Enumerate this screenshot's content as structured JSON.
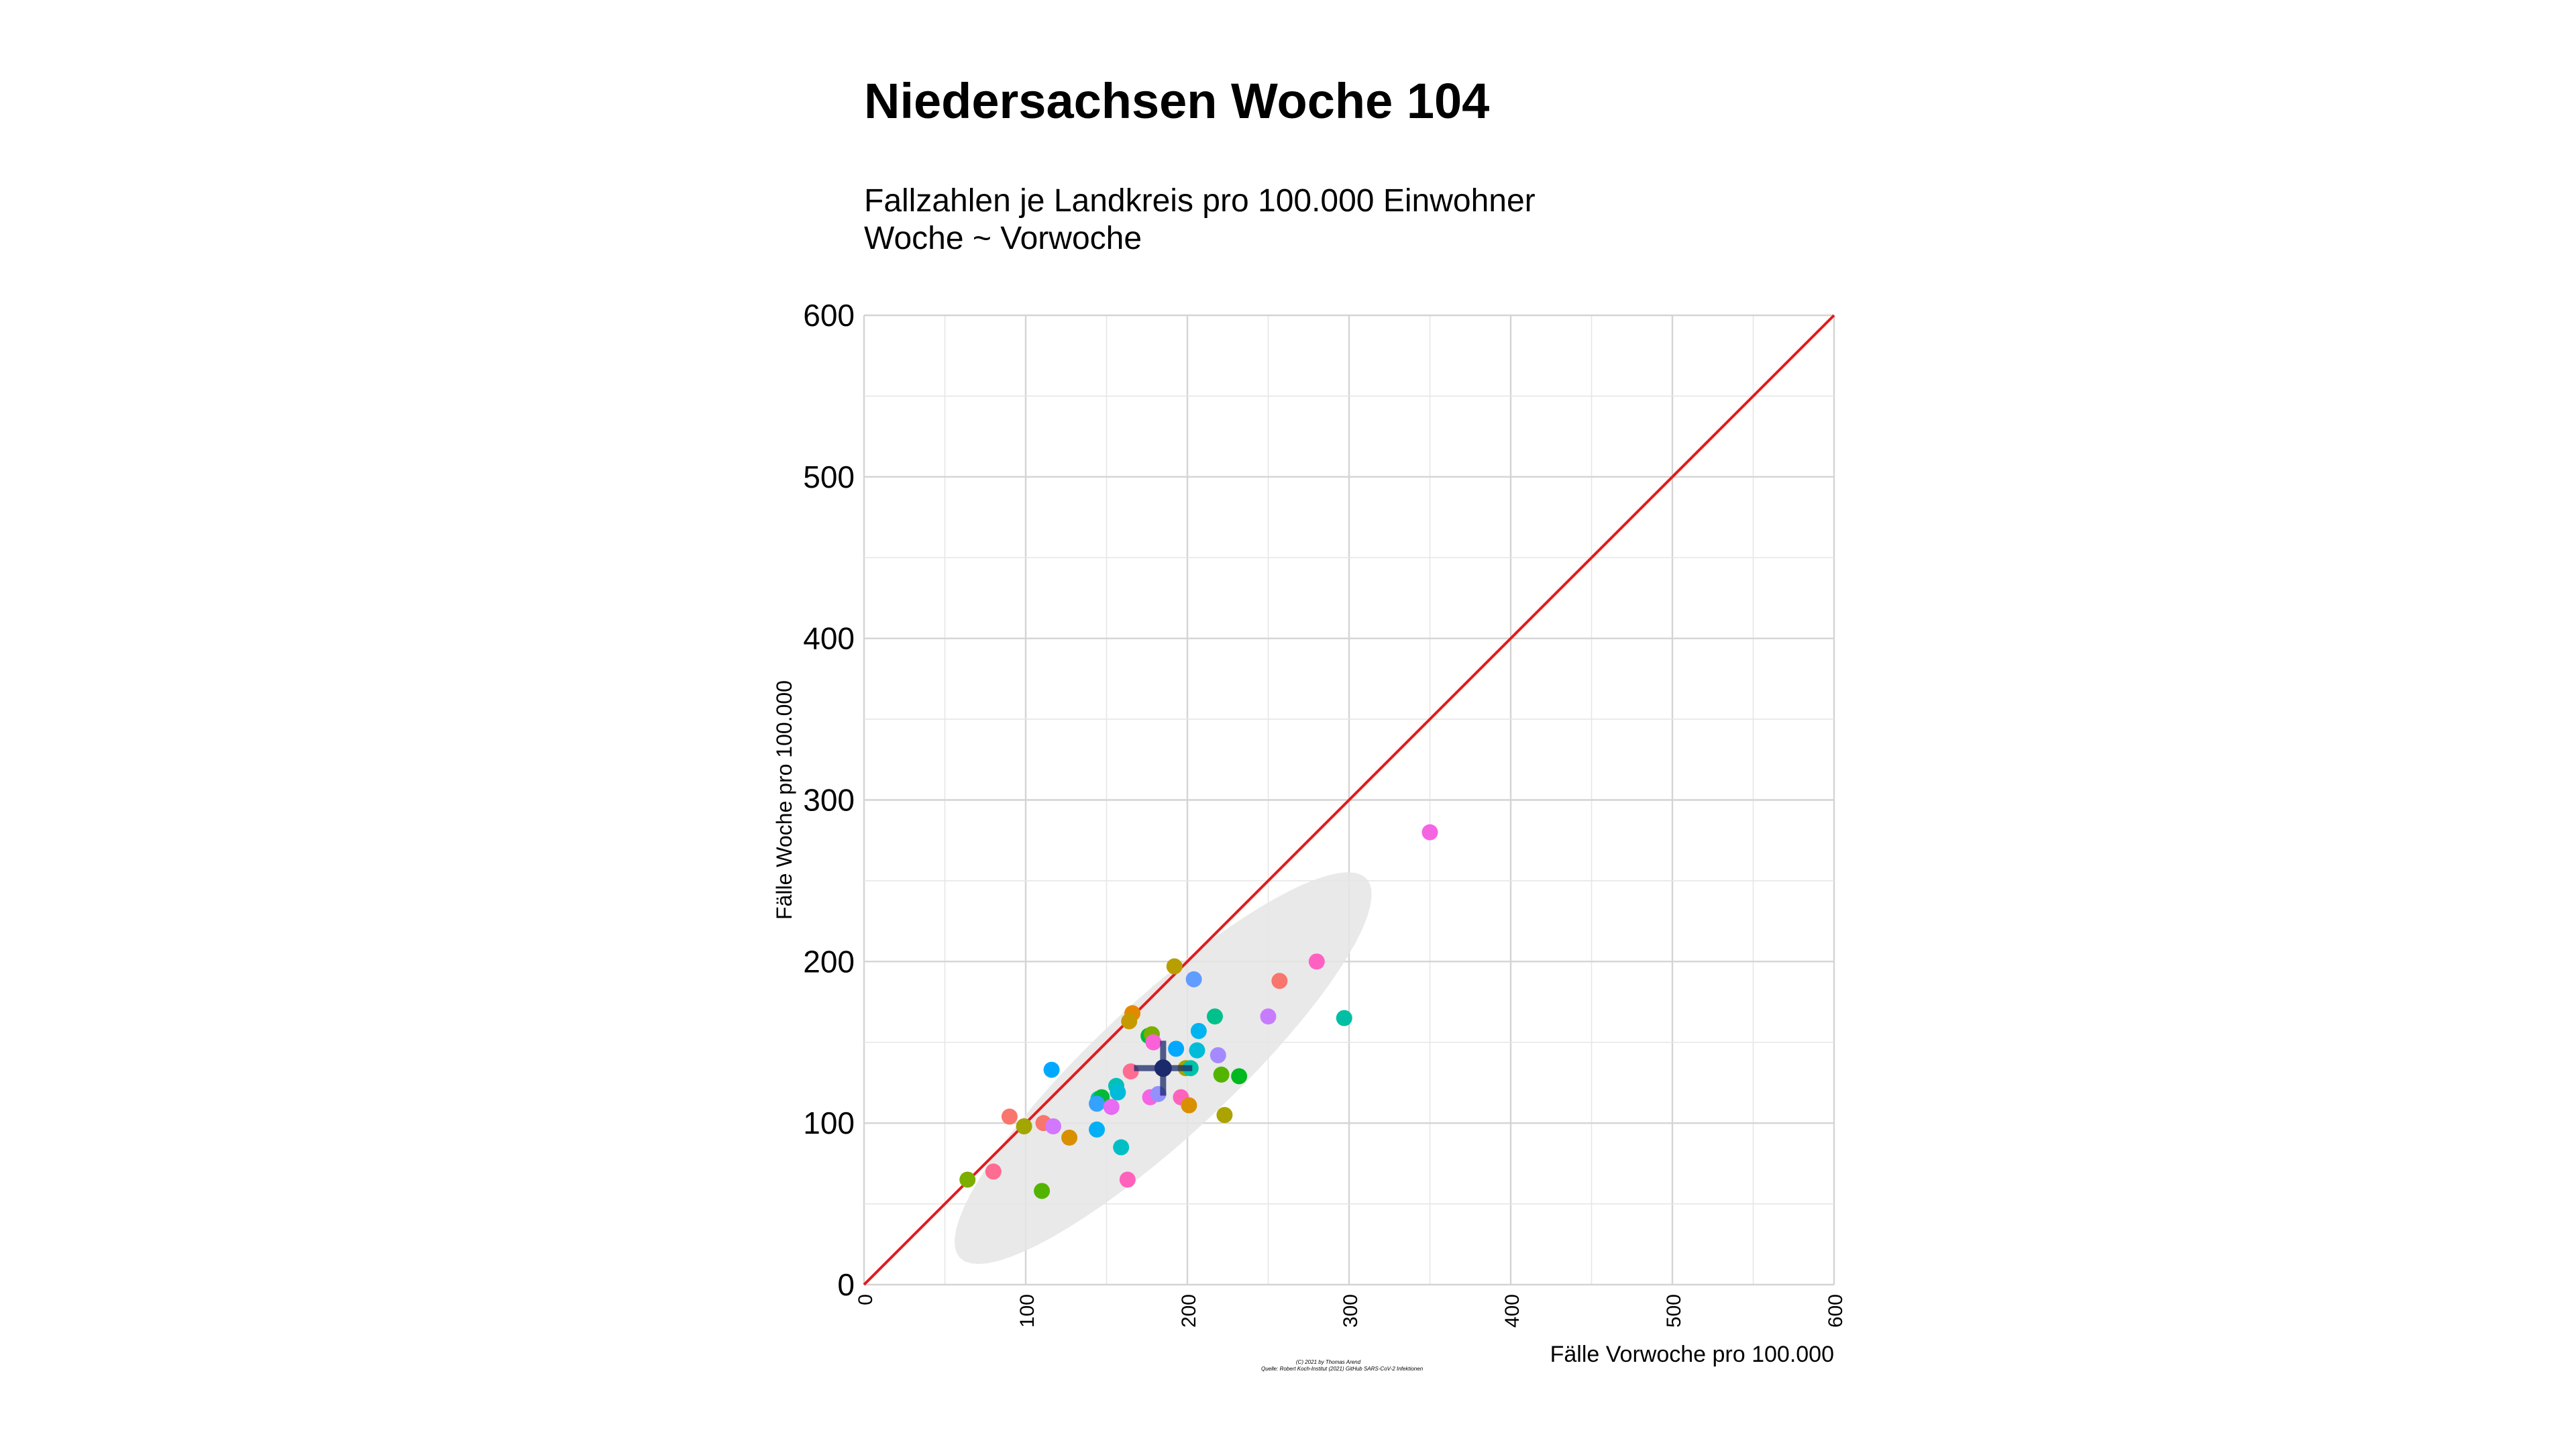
{
  "header": {
    "title": "Niedersachsen Woche 104",
    "subtitle_line1": "Fallzahlen je Landkreis pro 100.000 Einwohner",
    "subtitle_line2": "Woche ~ Vorwoche"
  },
  "caption": {
    "line1": "(C) 2021 by Thomas Arend",
    "line2": "Quelle: Robert Koch-Institut (2021) GitHub SARS-CoV-2 Infektionen"
  },
  "chart_data": {
    "type": "scatter",
    "title": "Niedersachsen Woche 104",
    "xlabel": "Fälle Vorwoche pro 100.000",
    "ylabel": "Fälle Woche pro 100.000",
    "xlim": [
      0,
      600
    ],
    "ylim": [
      0,
      600
    ],
    "x_ticks": [
      "0",
      "100",
      "200",
      "300",
      "400",
      "500",
      "600"
    ],
    "y_ticks": [
      "0",
      "100",
      "200",
      "300",
      "400",
      "500",
      "600"
    ],
    "grid": true,
    "legend": "none",
    "reference_line": {
      "from": [
        0,
        0
      ],
      "to": [
        600,
        600
      ],
      "color": "#e41a1c"
    },
    "mean_point": {
      "x": 185,
      "y": 134,
      "x_range": [
        167,
        203
      ],
      "y_range": [
        117,
        151
      ],
      "color": "#1b2a6b"
    },
    "confidence_ellipse": {
      "center": [
        185,
        134
      ],
      "fill": "#e5e5e5"
    },
    "points": [
      {
        "x": 350,
        "y": 280,
        "color": "#f564e3"
      },
      {
        "x": 280,
        "y": 200,
        "color": "#ff61c3"
      },
      {
        "x": 297,
        "y": 165,
        "color": "#00bfa4"
      },
      {
        "x": 257,
        "y": 188,
        "color": "#f8766d"
      },
      {
        "x": 250,
        "y": 166,
        "color": "#c77cff"
      },
      {
        "x": 192,
        "y": 197,
        "color": "#b79f00"
      },
      {
        "x": 204,
        "y": 189,
        "color": "#619cff"
      },
      {
        "x": 217,
        "y": 166,
        "color": "#00c08b"
      },
      {
        "x": 207,
        "y": 157,
        "color": "#00b4f0"
      },
      {
        "x": 166,
        "y": 168,
        "color": "#e38900"
      },
      {
        "x": 164,
        "y": 163,
        "color": "#c49a00"
      },
      {
        "x": 176,
        "y": 154,
        "color": "#00ba38"
      },
      {
        "x": 178,
        "y": 155,
        "color": "#7cae00"
      },
      {
        "x": 179,
        "y": 150,
        "color": "#fb61d7"
      },
      {
        "x": 193,
        "y": 146,
        "color": "#00a9ff"
      },
      {
        "x": 206,
        "y": 145,
        "color": "#00bcd8"
      },
      {
        "x": 219,
        "y": 142,
        "color": "#a58aff"
      },
      {
        "x": 221,
        "y": 130,
        "color": "#53b400"
      },
      {
        "x": 232,
        "y": 129,
        "color": "#00b81f"
      },
      {
        "x": 199,
        "y": 134,
        "color": "#a3a500"
      },
      {
        "x": 202,
        "y": 134,
        "color": "#00c1a9"
      },
      {
        "x": 116,
        "y": 133,
        "color": "#00a9ff"
      },
      {
        "x": 165,
        "y": 132,
        "color": "#ff6c91"
      },
      {
        "x": 156,
        "y": 123,
        "color": "#00c0b8"
      },
      {
        "x": 157,
        "y": 119,
        "color": "#00bcd8"
      },
      {
        "x": 145,
        "y": 115,
        "color": "#00c0b8"
      },
      {
        "x": 147,
        "y": 116,
        "color": "#00ba38"
      },
      {
        "x": 144,
        "y": 112,
        "color": "#35a2ff"
      },
      {
        "x": 153,
        "y": 110,
        "color": "#e76bf3"
      },
      {
        "x": 177,
        "y": 116,
        "color": "#f564e3"
      },
      {
        "x": 182,
        "y": 118,
        "color": "#9590ff"
      },
      {
        "x": 196,
        "y": 116,
        "color": "#ff62bc"
      },
      {
        "x": 201,
        "y": 111,
        "color": "#d89000"
      },
      {
        "x": 223,
        "y": 105,
        "color": "#aba300"
      },
      {
        "x": 90,
        "y": 104,
        "color": "#f8766d"
      },
      {
        "x": 111,
        "y": 100,
        "color": "#f8766d"
      },
      {
        "x": 117,
        "y": 98,
        "color": "#d277ff"
      },
      {
        "x": 99,
        "y": 98,
        "color": "#a3a500"
      },
      {
        "x": 144,
        "y": 96,
        "color": "#00b0f6"
      },
      {
        "x": 127,
        "y": 91,
        "color": "#d89000"
      },
      {
        "x": 159,
        "y": 85,
        "color": "#00bfc4"
      },
      {
        "x": 80,
        "y": 70,
        "color": "#ff6c91"
      },
      {
        "x": 64,
        "y": 65,
        "color": "#7cae00"
      },
      {
        "x": 163,
        "y": 65,
        "color": "#ff62bc"
      },
      {
        "x": 110,
        "y": 58,
        "color": "#53b400"
      }
    ]
  }
}
